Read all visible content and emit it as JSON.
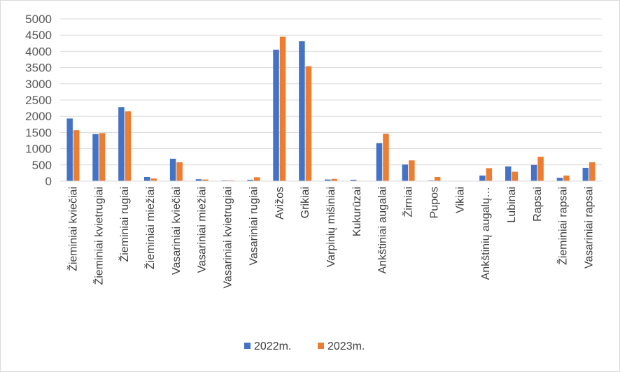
{
  "chart_data": {
    "type": "bar",
    "title": "",
    "xlabel": "",
    "ylabel": "",
    "ylim": [
      0,
      5000
    ],
    "yticks": [
      0,
      500,
      1000,
      1500,
      2000,
      2500,
      3000,
      3500,
      4000,
      4500,
      5000
    ],
    "grid": true,
    "legend_position": "bottom",
    "categories": [
      "Žieminiai kviečiai",
      "Žieminiai kvietrugiai",
      "Žieminiai rugiai",
      "Žieminiai miežiai",
      "Vasariniai kviečiai",
      "Vasariniai miežiai",
      "Vasariniai kvietrugiai",
      "Vasariniai rugiai",
      "Avižos",
      "Grikiai",
      "Varpinių mišiniai",
      "Kukurūzai",
      "Ankštiniai augalai",
      "Žirniai",
      "Pupos",
      "Vikiai",
      "Ankštinių augalų…",
      "Lubinai",
      "Rapsai",
      "Žieminiai rapsai",
      "Vasariniai rapsai"
    ],
    "series": [
      {
        "name": "2022m.",
        "color": "#4472C4",
        "values": [
          1930,
          1450,
          2280,
          130,
          690,
          60,
          20,
          40,
          4050,
          4310,
          50,
          40,
          1170,
          510,
          20,
          0,
          170,
          450,
          500,
          100,
          410
        ]
      },
      {
        "name": "2023m.",
        "color": "#ED7D31",
        "values": [
          1570,
          1480,
          2150,
          80,
          580,
          50,
          20,
          120,
          4450,
          3540,
          70,
          0,
          1460,
          640,
          130,
          0,
          400,
          290,
          750,
          170,
          580
        ]
      }
    ]
  }
}
